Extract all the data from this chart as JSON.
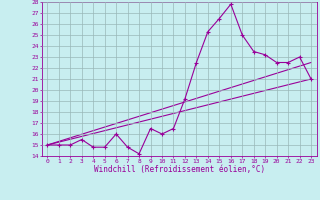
{
  "title": "",
  "xlabel": "Windchill (Refroidissement éolien,°C)",
  "ylabel": "",
  "background_color": "#c8eef0",
  "line_color": "#990099",
  "grid_color": "#9ab8b8",
  "xlim": [
    -0.5,
    23.5
  ],
  "ylim": [
    14,
    28
  ],
  "yticks": [
    14,
    15,
    16,
    17,
    18,
    19,
    20,
    21,
    22,
    23,
    24,
    25,
    26,
    27,
    28
  ],
  "xticks": [
    0,
    1,
    2,
    3,
    4,
    5,
    6,
    7,
    8,
    9,
    10,
    11,
    12,
    13,
    14,
    15,
    16,
    17,
    18,
    19,
    20,
    21,
    22,
    23
  ],
  "main_data_x": [
    0,
    1,
    2,
    3,
    4,
    5,
    6,
    7,
    8,
    9,
    10,
    11,
    12,
    13,
    14,
    15,
    16,
    17,
    18,
    19,
    20,
    21,
    22,
    23
  ],
  "main_data_y": [
    15.0,
    15.0,
    15.0,
    15.5,
    14.8,
    14.8,
    16.0,
    14.8,
    14.2,
    16.5,
    16.0,
    16.5,
    19.2,
    22.5,
    25.3,
    26.5,
    27.8,
    25.0,
    23.5,
    23.2,
    22.5,
    22.5,
    23.0,
    21.0
  ],
  "regression_line1_x": [
    0,
    23
  ],
  "regression_line1_y": [
    15.0,
    22.5
  ],
  "regression_line2_x": [
    0,
    23
  ],
  "regression_line2_y": [
    15.0,
    21.0
  ]
}
